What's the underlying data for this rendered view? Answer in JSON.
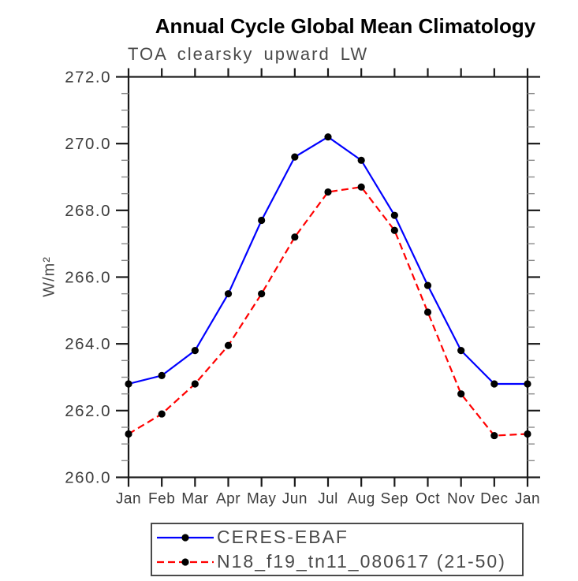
{
  "title": "Annual Cycle Global Mean Climatology",
  "subtitle": "TOA clearsky upward LW",
  "y_axis": {
    "label": "W/m²",
    "tick_values": [
      272,
      270,
      268,
      266,
      264,
      262,
      260
    ],
    "tick_labels": [
      "272.0",
      "270.0",
      "268.0",
      "266.0",
      "264.0",
      "262.0",
      "260.0"
    ]
  },
  "x_axis": {
    "tick_labels": [
      "Jan",
      "Feb",
      "Mar",
      "Apr",
      "May",
      "Jun",
      "Jul",
      "Aug",
      "Sep",
      "Oct",
      "Nov",
      "Dec",
      "Jan"
    ]
  },
  "chart_data": {
    "type": "line",
    "title": "Annual Cycle Global Mean Climatology",
    "subtitle": "TOA clearsky upward LW",
    "ylabel": "W/m²",
    "categories": [
      "Jan",
      "Feb",
      "Mar",
      "Apr",
      "May",
      "Jun",
      "Jul",
      "Aug",
      "Sep",
      "Oct",
      "Nov",
      "Dec",
      "Jan"
    ],
    "series": [
      {
        "name": "CERES-EBAF",
        "color": "#0000ff",
        "line_style": "solid",
        "marker": "filled-black-circle",
        "values": [
          262.8,
          263.05,
          263.8,
          265.5,
          267.7,
          269.6,
          270.2,
          269.5,
          267.85,
          265.75,
          263.8,
          262.8,
          262.8
        ]
      },
      {
        "name": "N18_f19_tn11_080617 (21-50)",
        "color": "#ff0000",
        "line_style": "dashed",
        "marker": "filled-black-circle",
        "values": [
          261.3,
          261.9,
          262.8,
          263.95,
          265.5,
          267.2,
          268.55,
          268.7,
          267.4,
          264.95,
          262.5,
          261.25,
          261.3
        ]
      }
    ],
    "ylim": [
      260.0,
      272.0
    ],
    "ytick_step": 2.0,
    "yminor_step": 0.5,
    "grid": false,
    "legend_position": "bottom-center",
    "marker_color": "#000000",
    "axis_color": "#1a1a1a",
    "minor_tick_color": "#8a8a8a",
    "tick_label_color": "#3d3d3d"
  }
}
